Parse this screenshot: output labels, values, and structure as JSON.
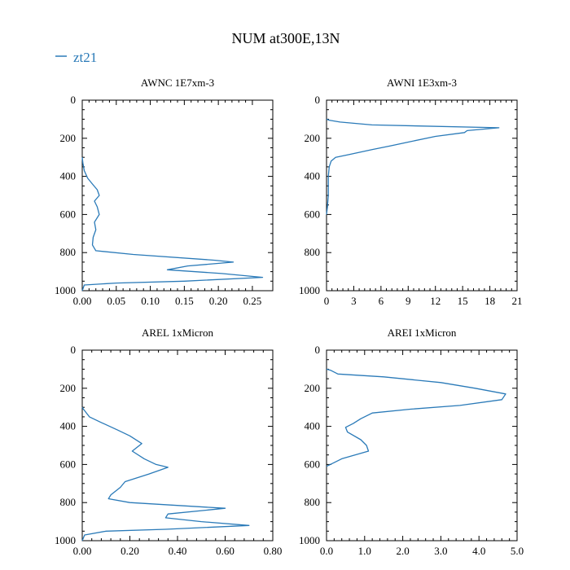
{
  "figure": {
    "title": "NUM at300E,13N",
    "legend": [
      {
        "label": "zt21",
        "color": "#2a7ab8"
      }
    ]
  },
  "chart_data": [
    {
      "type": "line",
      "title": "AWNC  1E7xm-3",
      "xlabel": "",
      "ylabel": "",
      "xlim": [
        0,
        0.28
      ],
      "ylim": [
        1000,
        0
      ],
      "grid": false,
      "xticks": [
        0,
        0.05,
        0.1,
        0.15,
        0.2,
        0.25
      ],
      "xtick_labels": [
        "0.00",
        "0.05",
        "0.10",
        "0.15",
        "0.20",
        "0.25"
      ],
      "yticks": [
        0,
        200,
        400,
        600,
        800,
        1000
      ],
      "ytick_labels": [
        "0",
        "200",
        "400",
        "600",
        "800",
        "1000"
      ],
      "series": [
        {
          "color": "#2a7ab8",
          "x": [
            0,
            0.001,
            0.003,
            0.008,
            0.015,
            0.022,
            0.025,
            0.018,
            0.022,
            0.025,
            0.018,
            0.02,
            0.016,
            0.015,
            0.02,
            0.075,
            0.195,
            0.222,
            0.155,
            0.125,
            0.205,
            0.265,
            0.15,
            0.05,
            0.003,
            0
          ],
          "y": [
            300,
            330,
            370,
            410,
            440,
            470,
            500,
            530,
            560,
            600,
            640,
            680,
            720,
            760,
            790,
            810,
            840,
            850,
            870,
            890,
            910,
            930,
            950,
            960,
            970,
            1000
          ]
        }
      ]
    },
    {
      "type": "line",
      "title": "AWNI  1E3xm-3",
      "xlabel": "",
      "ylabel": "",
      "xlim": [
        0,
        21
      ],
      "ylim": [
        1000,
        0
      ],
      "grid": false,
      "xticks": [
        0,
        3,
        6,
        9,
        12,
        15,
        18,
        21
      ],
      "xtick_labels": [
        "0",
        "3",
        "6",
        "9",
        "12",
        "15",
        "18",
        "21"
      ],
      "yticks": [
        0,
        200,
        400,
        600,
        800,
        1000
      ],
      "ytick_labels": [
        "0",
        "200",
        "400",
        "600",
        "800",
        "1000"
      ],
      "series": [
        {
          "color": "#2a7ab8",
          "x": [
            0,
            0.3,
            1.5,
            5,
            19.0,
            15.5,
            15.2,
            12,
            9,
            7,
            5,
            2.5,
            1.0,
            0.5,
            0.3,
            0.2,
            0.2,
            0.1,
            0
          ],
          "y": [
            100,
            105,
            115,
            130,
            145,
            160,
            170,
            190,
            220,
            240,
            260,
            285,
            300,
            320,
            350,
            400,
            500,
            560,
            600
          ]
        }
      ]
    },
    {
      "type": "line",
      "title": "AREL  1xMicron",
      "xlabel": "",
      "ylabel": "",
      "xlim": [
        0,
        0.8
      ],
      "ylim": [
        1000,
        0
      ],
      "grid": false,
      "xticks": [
        0,
        0.2,
        0.4,
        0.6,
        0.8
      ],
      "xtick_labels": [
        "0.00",
        "0.20",
        "0.40",
        "0.60",
        "0.80"
      ],
      "yticks": [
        0,
        200,
        400,
        600,
        800,
        1000
      ],
      "ytick_labels": [
        "0",
        "200",
        "400",
        "600",
        "800",
        "1000"
      ],
      "series": [
        {
          "color": "#2a7ab8",
          "x": [
            0,
            0.005,
            0.03,
            0.08,
            0.15,
            0.2,
            0.25,
            0.21,
            0.26,
            0.31,
            0.36,
            0.28,
            0.18,
            0.16,
            0.12,
            0.11,
            0.2,
            0.6,
            0.36,
            0.35,
            0.5,
            0.7,
            0.35,
            0.1,
            0.01,
            0
          ],
          "y": [
            300,
            310,
            350,
            380,
            420,
            450,
            490,
            530,
            570,
            600,
            615,
            650,
            690,
            720,
            760,
            780,
            800,
            830,
            860,
            880,
            900,
            920,
            940,
            950,
            970,
            1000
          ]
        }
      ]
    },
    {
      "type": "line",
      "title": "AREI  1xMicron",
      "xlabel": "",
      "ylabel": "",
      "xlim": [
        0,
        5.0
      ],
      "ylim": [
        1000,
        0
      ],
      "grid": false,
      "xticks": [
        0,
        1.0,
        2.0,
        3.0,
        4.0,
        5.0
      ],
      "xtick_labels": [
        "0.0",
        "1.0",
        "2.0",
        "3.0",
        "4.0",
        "5.0"
      ],
      "yticks": [
        0,
        200,
        400,
        600,
        800,
        1000
      ],
      "ytick_labels": [
        "0",
        "200",
        "400",
        "600",
        "800",
        "1000"
      ],
      "series": [
        {
          "color": "#2a7ab8",
          "x": [
            0,
            0.1,
            0.3,
            1.5,
            3.0,
            3.9,
            4.7,
            4.6,
            3.5,
            2.2,
            1.2,
            0.9,
            0.7,
            0.5,
            0.55,
            0.9,
            1.05,
            1.1,
            0.4,
            0.2,
            0
          ],
          "y": [
            100,
            105,
            125,
            140,
            170,
            200,
            230,
            260,
            290,
            310,
            330,
            360,
            385,
            405,
            430,
            470,
            500,
            530,
            570,
            590,
            610
          ]
        }
      ]
    }
  ]
}
